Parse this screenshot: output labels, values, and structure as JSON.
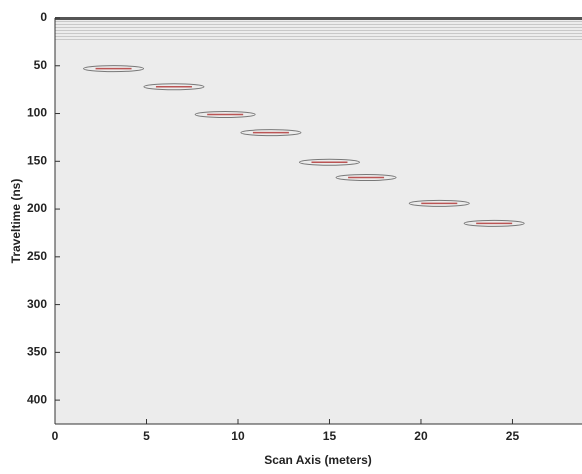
{
  "chart_data": {
    "type": "radargram",
    "x_label": "Scan Axis (meters)",
    "y_label": "Traveltime (ns)",
    "x": [
      3.2,
      6.5,
      9.3,
      11.8,
      15.0,
      17.0,
      21.0,
      24.0
    ],
    "values": [
      53,
      72,
      101,
      120,
      151,
      167,
      194,
      215
    ],
    "color": "#1a1a1a",
    "highlight_color": "#b03030",
    "xlim": [
      0,
      28.8
    ],
    "ylim": [
      0,
      425
    ],
    "y_reversed": true,
    "xticks": [
      0,
      5,
      10,
      15,
      20,
      25
    ],
    "yticks": [
      0,
      50,
      100,
      150,
      200,
      250,
      300,
      350,
      400
    ]
  }
}
